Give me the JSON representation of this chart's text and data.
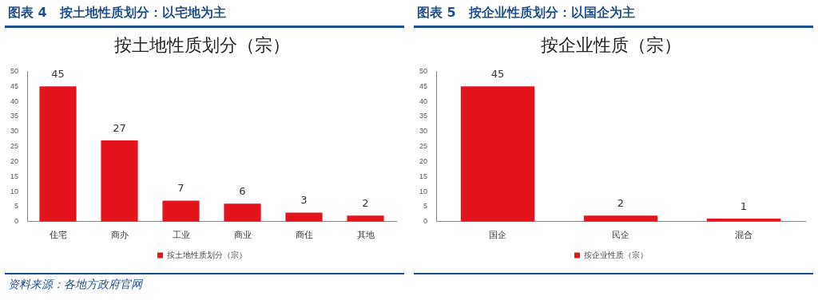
{
  "chart_data": [
    {
      "type": "bar",
      "title": "图表 4　按土地性质划分：以宅地为主",
      "subtitle": "按土地性质划分（宗）",
      "categories": [
        "住宅",
        "商办",
        "工业",
        "商业",
        "商住",
        "其地"
      ],
      "series": [
        {
          "name": "按土地性质划分（宗）",
          "color": "#e3141c",
          "values": [
            45,
            27,
            7,
            6,
            3,
            2
          ]
        }
      ],
      "ylim": [
        0,
        50
      ],
      "yticks": [
        0,
        5,
        10,
        15,
        20,
        25,
        30,
        35,
        40,
        45,
        50
      ],
      "grid": false,
      "legend": "bottom",
      "data_labels": true,
      "annotations": [
        "资料来源：各地方政府官网"
      ]
    },
    {
      "type": "bar",
      "title": "图表 5　按企业性质划分：以国企为主",
      "subtitle": "按企业性质（宗）",
      "categories": [
        "国企",
        "民企",
        "混合"
      ],
      "series": [
        {
          "name": "按企业性质（宗）",
          "color": "#e3141c",
          "values": [
            45,
            2,
            1
          ]
        }
      ],
      "ylim": [
        0,
        50
      ],
      "yticks": [
        0,
        5,
        10,
        15,
        20,
        25,
        30,
        35,
        40,
        45,
        50
      ],
      "grid": false,
      "legend": "bottom",
      "data_labels": true
    }
  ]
}
